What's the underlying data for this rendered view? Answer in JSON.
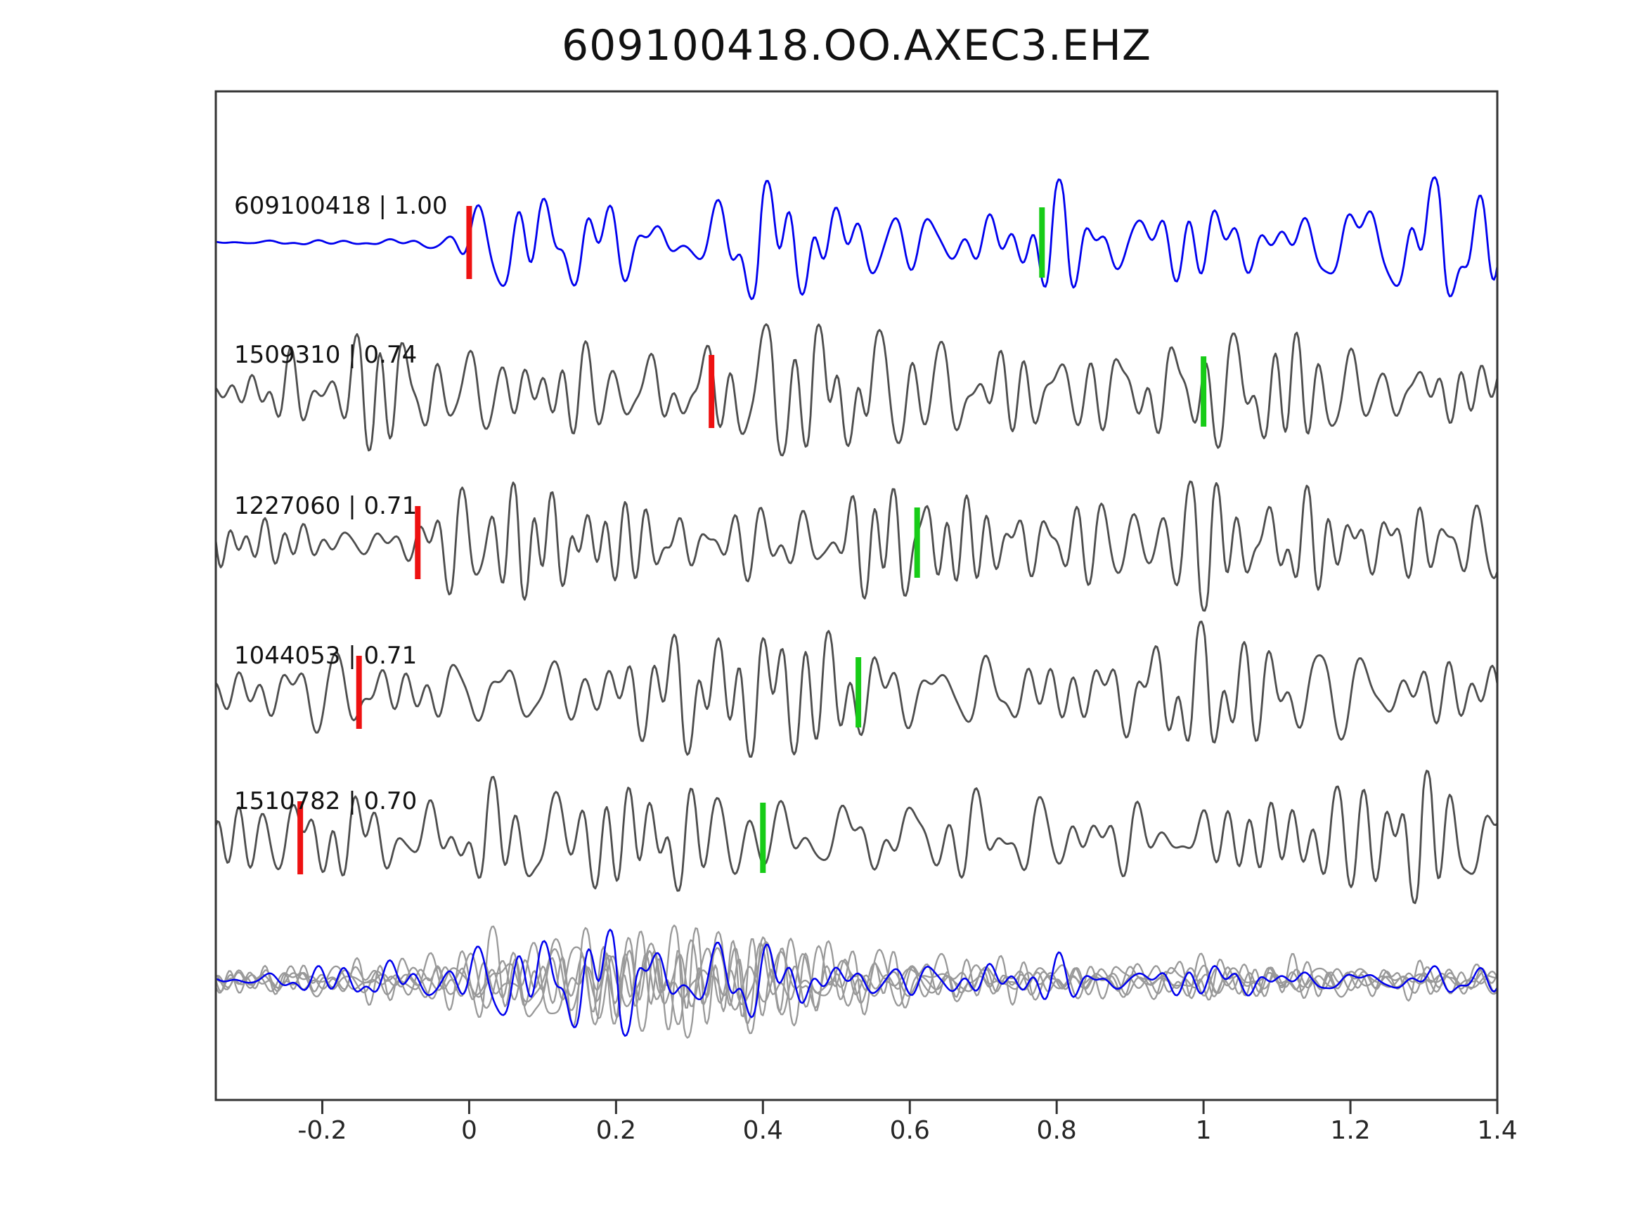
{
  "title": "609100418.OO.AXEC3.EHZ",
  "chart_data": {
    "type": "line",
    "subtype": "seismogram-template-match-stack",
    "title": "609100418.OO.AXEC3.EHZ",
    "xlabel": "",
    "ylabel": "",
    "xlim": [
      -0.345,
      1.4
    ],
    "xticks": [
      -0.2,
      0,
      0.2,
      0.4,
      0.6,
      0.8,
      1,
      1.2,
      1.4
    ],
    "xtick_labels": [
      "-0.2",
      "0",
      "0.2",
      "0.4",
      "0.6",
      "0.8",
      "1",
      "1.2",
      "1.4"
    ],
    "grid": false,
    "legend": false,
    "colors": {
      "template_trace": "#0000ee",
      "detection_trace": "#4d4d4d",
      "overlay_trace": "#999999",
      "pick_red": "#ee1111",
      "pick_green": "#17cc17",
      "frame": "#333333"
    },
    "traces": [
      {
        "id": "609100418",
        "correlation": 1.0,
        "label_text": "609100418 | 1.00",
        "role": "template_trace",
        "pick_red_x": 0.0,
        "pick_green_x": 0.78
      },
      {
        "id": "1509310",
        "correlation": 0.74,
        "label_text": "1509310 | 0.74",
        "role": "detection_trace",
        "pick_red_x": 0.33,
        "pick_green_x": 1.0
      },
      {
        "id": "1227060",
        "correlation": 0.71,
        "label_text": "1227060 | 0.71",
        "role": "detection_trace",
        "pick_red_x": -0.07,
        "pick_green_x": 0.61
      },
      {
        "id": "1044053",
        "correlation": 0.71,
        "label_text": "1044053 | 0.71",
        "role": "detection_trace",
        "pick_red_x": -0.15,
        "pick_green_x": 0.53
      },
      {
        "id": "1510782",
        "correlation": 0.7,
        "label_text": "1510782 | 0.70",
        "role": "detection_trace",
        "pick_red_x": -0.23,
        "pick_green_x": 0.4
      }
    ],
    "overlay": {
      "gray_trace_count": 5,
      "has_blue_template": true
    }
  }
}
